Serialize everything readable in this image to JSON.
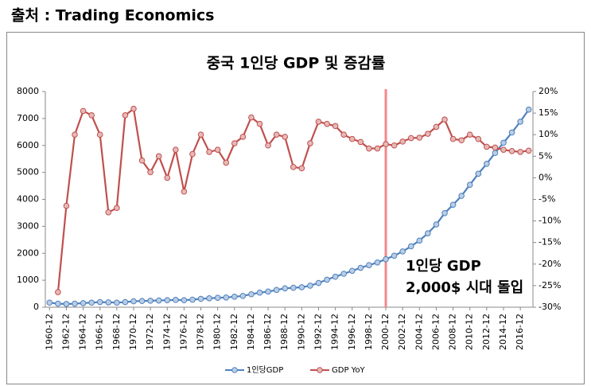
{
  "header": {
    "source": "출처 : Trading Economics"
  },
  "chart_data": {
    "type": "line",
    "title": "중국 1인당 GDP 및 증감률",
    "categories": [
      "1960-12",
      null,
      "1962-12",
      null,
      "1964-12",
      null,
      "1966-12",
      null,
      "1968-12",
      null,
      "1970-12",
      null,
      "1972-12",
      null,
      "1974-12",
      null,
      "1976-12",
      null,
      "1978-12",
      null,
      "1980-12",
      null,
      "1982-12",
      null,
      "1984-12",
      null,
      "1986-12",
      null,
      "1988-12",
      null,
      "1990-12",
      null,
      "1992-12",
      null,
      "1994-12",
      null,
      "1996-12",
      null,
      "1998-12",
      null,
      "2000-12",
      null,
      "2002-12",
      null,
      "2004-12",
      null,
      "2006-12",
      null,
      "2008-12",
      null,
      "2010-12",
      null,
      "2012-12",
      null,
      "2014-12",
      null,
      "2016-12",
      null
    ],
    "series": [
      {
        "name": "1인당GDP",
        "color": "#4f81bd",
        "marker_fill": "#b9cde5",
        "axis": "y",
        "values": [
          170,
          130,
          120,
          130,
          150,
          170,
          190,
          180,
          170,
          190,
          220,
          230,
          240,
          250,
          260,
          270,
          260,
          280,
          310,
          330,
          350,
          360,
          390,
          420,
          480,
          540,
          580,
          640,
          700,
          720,
          740,
          800,
          900,
          1020,
          1130,
          1240,
          1350,
          1460,
          1560,
          1660,
          1780,
          1910,
          2070,
          2260,
          2470,
          2740,
          3070,
          3490,
          3800,
          4130,
          4540,
          4950,
          5320,
          5720,
          6100,
          6480,
          6880,
          7330
        ]
      },
      {
        "name": "GDP YoY",
        "color": "#c0504d",
        "marker_fill": "#e6b9b8",
        "axis": "y2",
        "values": [
          null,
          -26.5,
          -6.5,
          10,
          15.5,
          14.5,
          10,
          -8,
          -7,
          14.5,
          16,
          4,
          1.3,
          5,
          0,
          6.5,
          -3.2,
          5.5,
          10,
          6,
          6.5,
          3.5,
          8,
          9.5,
          14,
          12.5,
          7.5,
          10,
          9.5,
          2.5,
          2.2,
          8,
          13,
          12.5,
          12,
          10,
          9,
          8.3,
          6.8,
          6.8,
          7.8,
          7.5,
          8.4,
          9.2,
          9.3,
          10.2,
          11.8,
          13.5,
          9,
          8.7,
          10,
          9,
          7.2,
          7,
          6.5,
          6.2,
          6,
          6.3
        ]
      }
    ],
    "ylim": [
      0,
      8000
    ],
    "yticks": [
      0,
      1000,
      2000,
      3000,
      4000,
      5000,
      6000,
      7000,
      8000
    ],
    "y2lim": [
      -30,
      20
    ],
    "y2ticks": [
      {
        "value": -30,
        "label": "-30%"
      },
      {
        "value": -25,
        "label": "-25%"
      },
      {
        "value": -20,
        "label": "-20%"
      },
      {
        "value": -15,
        "label": "-15%"
      },
      {
        "value": -10,
        "label": "-10%"
      },
      {
        "value": -5,
        "label": "-5%"
      },
      {
        "value": 0,
        "label": "0%"
      },
      {
        "value": 5,
        "label": "5%"
      },
      {
        "value": 10,
        "label": "10%"
      },
      {
        "value": 15,
        "label": "15%"
      },
      {
        "value": 20,
        "label": "20%"
      }
    ],
    "grid": false,
    "legend": "bottom",
    "annotation": {
      "x": "2000-12",
      "color": "#f4878a",
      "lines": [
        "1인당 GDP",
        "2,000$ 시대 돌입"
      ]
    }
  }
}
